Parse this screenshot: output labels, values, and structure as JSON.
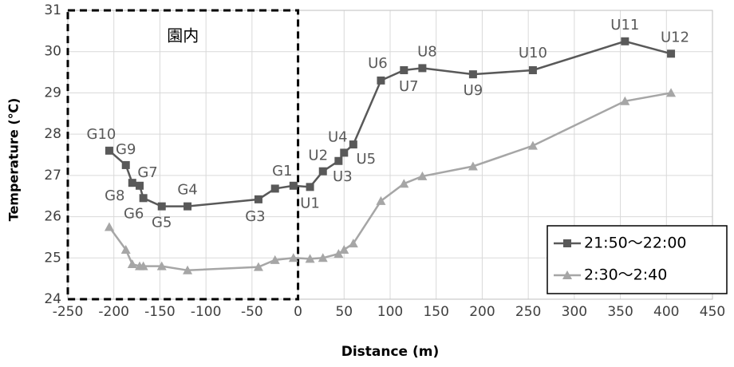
{
  "chart_data": {
    "type": "line",
    "x_label": "Distance (m)",
    "y_label": "Temperature (℃)",
    "x": [
      -205,
      -187,
      -180,
      -172,
      -168,
      -148,
      -120,
      -43,
      -25,
      -5,
      13,
      27,
      44,
      50,
      60,
      90,
      115,
      135,
      190,
      255,
      355,
      405
    ],
    "point_labels": [
      "G10",
      "G9",
      "G8",
      "G7",
      "G6",
      "G5",
      "G4",
      "G3",
      null,
      "G1",
      "U1",
      "U2",
      "U3",
      "U4",
      "U5",
      "U6",
      "U7",
      "U8",
      "U9",
      "U10",
      "U11",
      "U12"
    ],
    "series": [
      {
        "name": "21:50～22:00",
        "color": "#595959",
        "marker": "square",
        "values": [
          27.6,
          27.25,
          26.82,
          26.75,
          26.45,
          26.25,
          26.25,
          26.42,
          26.68,
          26.75,
          26.72,
          27.1,
          27.35,
          27.55,
          27.75,
          29.3,
          29.55,
          29.6,
          29.45,
          29.55,
          30.25,
          29.95
        ]
      },
      {
        "name": "2:30～2:40",
        "color": "#a6a6a6",
        "marker": "triangle",
        "values": [
          25.75,
          25.2,
          24.85,
          24.8,
          24.8,
          24.8,
          24.7,
          24.78,
          24.95,
          25.0,
          24.98,
          25.0,
          25.1,
          25.2,
          25.35,
          26.38,
          26.8,
          26.98,
          27.22,
          27.72,
          28.8,
          29.0
        ]
      }
    ],
    "annotation": {
      "text": "園内",
      "x": [
        -250,
        0
      ]
    },
    "xlim": [
      -250,
      450
    ],
    "xticks": [
      -250,
      -200,
      -150,
      -100,
      -50,
      0,
      50,
      100,
      150,
      200,
      250,
      300,
      350,
      400,
      450
    ],
    "ylim": [
      24,
      31
    ],
    "yticks": [
      24,
      25,
      26,
      27,
      28,
      29,
      30,
      31
    ],
    "grid": true,
    "legend": "lower right"
  }
}
